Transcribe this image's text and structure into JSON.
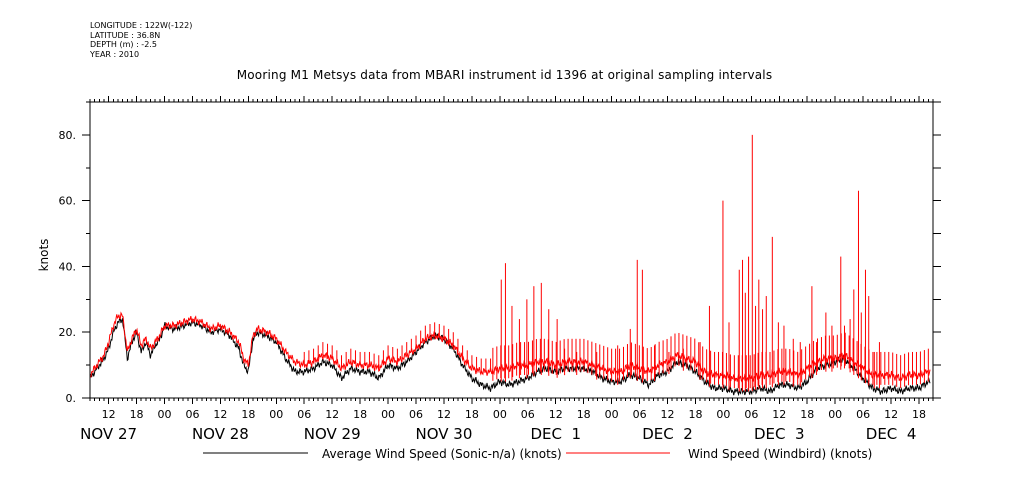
{
  "meta": {
    "longitude": "LONGITUDE : 122W(-122)",
    "latitude": "LATITUDE : 36.8N",
    "depth": "DEPTH (m) : -2.5",
    "year": "YEAR : 2010"
  },
  "title": "Mooring M1 Metsys data from MBARI instrument id 1396 at original sampling intervals",
  "chart_data": {
    "type": "line",
    "ylabel": "knots",
    "ylim": [
      0,
      90
    ],
    "yticks": [
      0,
      20,
      40,
      60,
      80
    ],
    "ytick_labels": [
      "0.",
      "20.",
      "40.",
      "60.",
      "80."
    ],
    "xlim": [
      8,
      189
    ],
    "x_unit": "hours since NOV 27 00:00 (2010)",
    "x_hour_ticks": [
      {
        "x": 12,
        "label": "12"
      },
      {
        "x": 18,
        "label": "18"
      },
      {
        "x": 24,
        "label": "00"
      },
      {
        "x": 30,
        "label": "06"
      },
      {
        "x": 36,
        "label": "12"
      },
      {
        "x": 42,
        "label": "18"
      },
      {
        "x": 48,
        "label": "00"
      },
      {
        "x": 54,
        "label": "06"
      },
      {
        "x": 60,
        "label": "12"
      },
      {
        "x": 66,
        "label": "18"
      },
      {
        "x": 72,
        "label": "00"
      },
      {
        "x": 78,
        "label": "06"
      },
      {
        "x": 84,
        "label": "12"
      },
      {
        "x": 90,
        "label": "18"
      },
      {
        "x": 96,
        "label": "00"
      },
      {
        "x": 102,
        "label": "06"
      },
      {
        "x": 108,
        "label": "12"
      },
      {
        "x": 114,
        "label": "18"
      },
      {
        "x": 120,
        "label": "00"
      },
      {
        "x": 126,
        "label": "06"
      },
      {
        "x": 132,
        "label": "12"
      },
      {
        "x": 138,
        "label": "18"
      },
      {
        "x": 144,
        "label": "00"
      },
      {
        "x": 150,
        "label": "06"
      },
      {
        "x": 156,
        "label": "12"
      },
      {
        "x": 162,
        "label": "18"
      },
      {
        "x": 168,
        "label": "00"
      },
      {
        "x": 174,
        "label": "06"
      },
      {
        "x": 180,
        "label": "12"
      },
      {
        "x": 186,
        "label": "18"
      }
    ],
    "x_date_labels": [
      {
        "x": 12,
        "label": "NOV 27"
      },
      {
        "x": 36,
        "label": "NOV 28"
      },
      {
        "x": 60,
        "label": "NOV 29"
      },
      {
        "x": 84,
        "label": "NOV 30"
      },
      {
        "x": 108,
        "label": "DEC  1"
      },
      {
        "x": 132,
        "label": "DEC  2"
      },
      {
        "x": 156,
        "label": "DEC  3"
      },
      {
        "x": 180,
        "label": "DEC  4"
      }
    ],
    "series": [
      {
        "name": "Average Wind Speed (Sonic-n/a) (knots)",
        "color": "#000000",
        "x": [
          8,
          9,
          10,
          11,
          12,
          13,
          14,
          15,
          16,
          17,
          18,
          19,
          20,
          21,
          22,
          23,
          24,
          26,
          28,
          30,
          32,
          34,
          36,
          38,
          40,
          41,
          42,
          43,
          44,
          46,
          48,
          50,
          52,
          54,
          56,
          58,
          60,
          62,
          64,
          66,
          68,
          70,
          72,
          74,
          76,
          78,
          80,
          82,
          84,
          86,
          88,
          90,
          92,
          94,
          96,
          98,
          100,
          102,
          104,
          106,
          108,
          110,
          112,
          114,
          116,
          118,
          120,
          122,
          124,
          126,
          128,
          130,
          132,
          134,
          136,
          138,
          140,
          142,
          144,
          146,
          148,
          150,
          152,
          154,
          156,
          158,
          160,
          162,
          164,
          166,
          168,
          170,
          172,
          174,
          176,
          178,
          180,
          182,
          184,
          186,
          188
        ],
        "y": [
          6,
          8,
          10,
          12,
          15,
          20,
          23,
          24,
          12,
          17,
          20,
          14,
          17,
          13,
          16,
          18,
          22,
          21,
          22,
          23,
          22,
          20,
          21,
          19,
          15,
          10,
          8,
          18,
          20,
          19,
          17,
          12,
          8,
          8,
          9,
          11,
          10,
          6,
          9,
          8,
          8,
          6,
          10,
          9,
          11,
          14,
          17,
          19,
          18,
          15,
          10,
          6,
          4,
          3,
          5,
          4,
          5,
          6,
          8,
          9,
          8,
          9,
          9,
          9,
          8,
          6,
          5,
          5,
          7,
          6,
          4,
          7,
          8,
          11,
          10,
          8,
          5,
          3,
          3,
          2,
          2,
          2,
          3,
          2,
          4,
          4,
          3,
          5,
          9,
          10,
          11,
          12,
          9,
          6,
          3,
          2,
          3,
          2,
          3,
          3,
          5
        ]
      },
      {
        "name": "Wind Speed (Windbird) (knots)",
        "color": "#ff0000",
        "x": [
          8,
          9,
          10,
          11,
          12,
          13,
          14,
          15,
          16,
          17,
          18,
          19,
          20,
          21,
          22,
          23,
          24,
          26,
          28,
          30,
          32,
          34,
          36,
          38,
          40,
          41,
          42,
          43,
          44,
          46,
          48,
          50,
          52,
          54,
          56,
          58,
          60,
          62,
          64,
          66,
          68,
          70,
          72,
          74,
          76,
          78,
          80,
          82,
          84,
          86,
          88,
          90,
          92,
          94,
          96,
          98,
          100,
          102,
          104,
          106,
          108,
          110,
          112,
          114,
          116,
          118,
          120,
          122,
          124,
          126,
          128,
          130,
          132,
          134,
          136,
          138,
          140,
          142,
          144,
          146,
          148,
          150,
          152,
          154,
          156,
          158,
          160,
          162,
          164,
          166,
          168,
          170,
          172,
          174,
          176,
          178,
          180,
          182,
          184,
          186,
          188
        ],
        "y": [
          7,
          9,
          11,
          13,
          17,
          22,
          25,
          25,
          14,
          18,
          21,
          16,
          18,
          15,
          17,
          19,
          22,
          22,
          23,
          24,
          23,
          21,
          22,
          20,
          17,
          12,
          10,
          19,
          21,
          20,
          18,
          14,
          11,
          10,
          11,
          13,
          12,
          9,
          11,
          10,
          10,
          9,
          12,
          11,
          13,
          15,
          18,
          19,
          18,
          16,
          12,
          9,
          8,
          8,
          9,
          9,
          10,
          10,
          11,
          11,
          10,
          11,
          11,
          11,
          10,
          9,
          8,
          8,
          10,
          9,
          8,
          10,
          11,
          13,
          12,
          11,
          8,
          7,
          7,
          6,
          6,
          6,
          7,
          7,
          8,
          8,
          7,
          9,
          11,
          12,
          12,
          13,
          11,
          9,
          7,
          7,
          7,
          6,
          7,
          7,
          8
        ],
        "spikes": [
          {
            "x": 96.3,
            "y": 36
          },
          {
            "x": 97.2,
            "y": 41
          },
          {
            "x": 98.6,
            "y": 28
          },
          {
            "x": 100.2,
            "y": 24
          },
          {
            "x": 101.8,
            "y": 30
          },
          {
            "x": 103.3,
            "y": 34
          },
          {
            "x": 104.9,
            "y": 35
          },
          {
            "x": 106.5,
            "y": 27
          },
          {
            "x": 108.3,
            "y": 24
          },
          {
            "x": 109.9,
            "y": 15
          },
          {
            "x": 112.5,
            "y": 14
          },
          {
            "x": 116.8,
            "y": 14
          },
          {
            "x": 121.3,
            "y": 16
          },
          {
            "x": 124.0,
            "y": 21
          },
          {
            "x": 125.5,
            "y": 42
          },
          {
            "x": 126.6,
            "y": 39
          },
          {
            "x": 129.2,
            "y": 16
          },
          {
            "x": 132.3,
            "y": 14
          },
          {
            "x": 135.4,
            "y": 15
          },
          {
            "x": 139.0,
            "y": 17
          },
          {
            "x": 141.0,
            "y": 28
          },
          {
            "x": 143.9,
            "y": 60
          },
          {
            "x": 145.2,
            "y": 23
          },
          {
            "x": 147.4,
            "y": 39
          },
          {
            "x": 148.1,
            "y": 42
          },
          {
            "x": 148.7,
            "y": 32
          },
          {
            "x": 149.4,
            "y": 43
          },
          {
            "x": 150.2,
            "y": 80
          },
          {
            "x": 150.9,
            "y": 28
          },
          {
            "x": 151.6,
            "y": 36
          },
          {
            "x": 152.4,
            "y": 27
          },
          {
            "x": 153.2,
            "y": 31
          },
          {
            "x": 154.5,
            "y": 49
          },
          {
            "x": 155.8,
            "y": 23
          },
          {
            "x": 157.0,
            "y": 22
          },
          {
            "x": 159.0,
            "y": 18
          },
          {
            "x": 160.5,
            "y": 17
          },
          {
            "x": 163.0,
            "y": 34
          },
          {
            "x": 164.0,
            "y": 17
          },
          {
            "x": 166.0,
            "y": 26
          },
          {
            "x": 167.3,
            "y": 22
          },
          {
            "x": 169.2,
            "y": 43
          },
          {
            "x": 170.0,
            "y": 22
          },
          {
            "x": 171.2,
            "y": 24
          },
          {
            "x": 172.0,
            "y": 33
          },
          {
            "x": 173.0,
            "y": 63
          },
          {
            "x": 173.6,
            "y": 26
          },
          {
            "x": 174.5,
            "y": 39
          },
          {
            "x": 175.2,
            "y": 31
          },
          {
            "x": 176.4,
            "y": 14
          },
          {
            "x": 177.5,
            "y": 17
          }
        ]
      }
    ],
    "legend_position": "bottom"
  }
}
